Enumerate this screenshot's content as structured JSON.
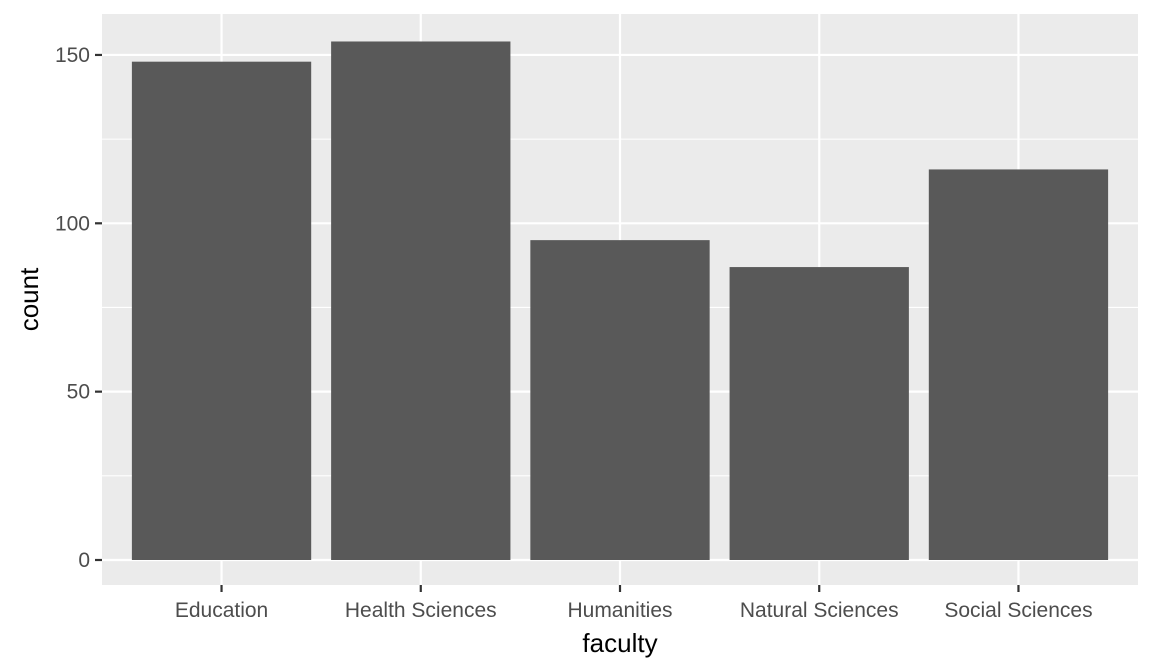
{
  "chart_data": {
    "type": "bar",
    "title": "",
    "xlabel": "faculty",
    "ylabel": "count",
    "categories": [
      "Education",
      "Health Sciences",
      "Humanities",
      "Natural Sciences",
      "Social Sciences"
    ],
    "values": [
      148,
      154,
      95,
      87,
      116
    ],
    "ylim": [
      0,
      154
    ],
    "yticks": [
      0,
      50,
      100,
      150
    ],
    "grid": true,
    "legend": "none",
    "colors": {
      "panel_background": "#ebebeb",
      "grid_line": "#ffffff",
      "bar_fill": "#595959",
      "tick_text": "#4d4d4d",
      "tick_mark": "#333333",
      "axis_title": "#000000"
    }
  }
}
